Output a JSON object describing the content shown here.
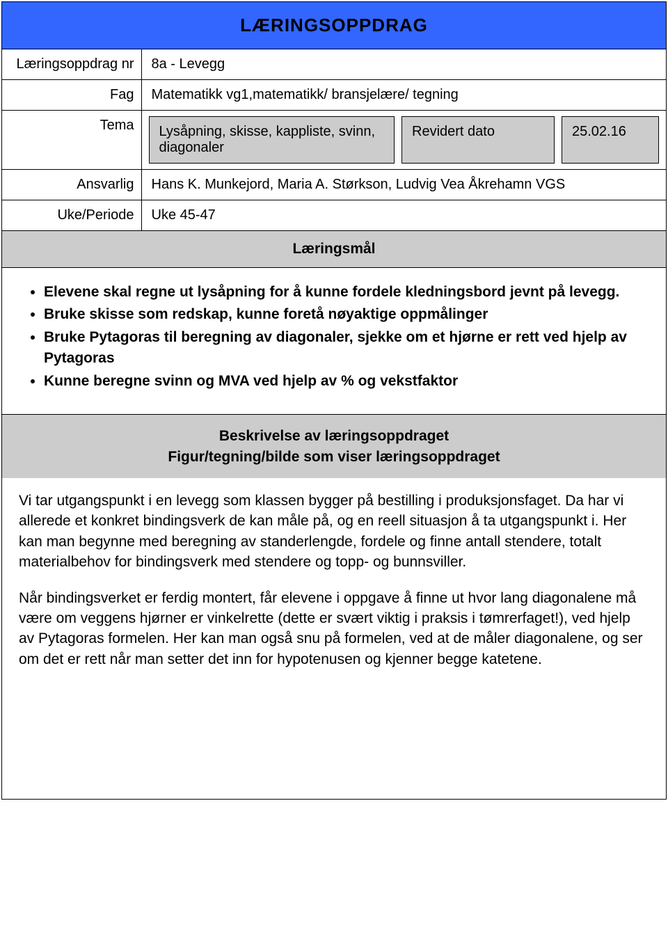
{
  "title": "LÆRINGSOPPDRAG",
  "rows": {
    "nr": {
      "label": "Læringsoppdrag nr",
      "value": "8a - Levegg"
    },
    "fag": {
      "label": "Fag",
      "value": "Matematikk vg1,matematikk/ bransjelære/ tegning"
    },
    "tema": {
      "label": "Tema",
      "desc": "Lysåpning, skisse, kappliste, svinn, diagonaler",
      "rev_label": "Revidert dato",
      "rev_date": "25.02.16"
    },
    "ansvarlig": {
      "label": "Ansvarlig",
      "value": "Hans K. Munkejord, Maria A. Størkson, Ludvig Vea Åkrehamn VGS"
    },
    "uke": {
      "label": "Uke/Periode",
      "value": "Uke 45-47"
    }
  },
  "goals_header": "Læringsmål",
  "goals": [
    "Elevene skal regne ut lysåpning for å kunne fordele kledningsbord jevnt på levegg.",
    "Bruke skisse som redskap, kunne foretå nøyaktige oppmålinger",
    "Bruke Pytagoras til beregning av diagonaler, sjekke om et hjørne er rett ved hjelp av Pytagoras",
    "Kunne beregne svinn og MVA ved hjelp av % og vekstfaktor"
  ],
  "desc_header_1": "Beskrivelse av læringsoppdraget",
  "desc_header_2": "Figur/tegning/bilde som viser læringsoppdraget",
  "paragraphs": [
    "Vi tar utgangspunkt i en levegg som klassen bygger på bestilling i produksjonsfaget. Da har vi allerede et konkret bindingsverk de kan måle på, og en reell situasjon å ta utgangspunkt i. Her kan man begynne med beregning av standerlengde, fordele og finne antall stendere, totalt materialbehov for bindingsverk med stendere og topp- og bunnsviller.",
    "Når bindingsverket er ferdig montert, får elevene i oppgave å finne ut hvor lang diagonalene må være om veggens hjørner er vinkelrette (dette er svært viktig i praksis i tømrerfaget!), ved hjelp av Pytagoras formelen. Her kan man også snu på formelen, ved at de måler diagonalene, og ser om det er rett når man setter det inn for hypotenusen og kjenner begge katetene."
  ],
  "colors": {
    "title_bg": "#3366ff",
    "gray_bg": "#cccccc",
    "border": "#000000",
    "text": "#000000",
    "background": "#ffffff"
  }
}
